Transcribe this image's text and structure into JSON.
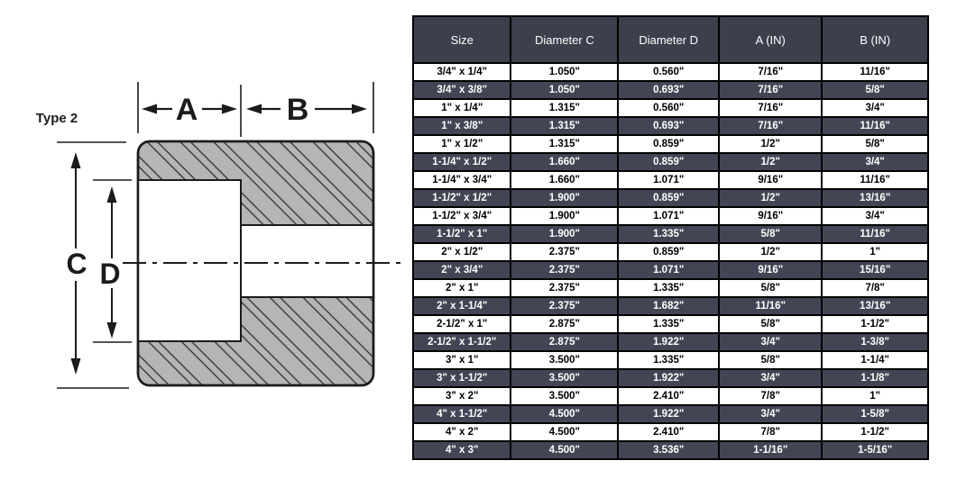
{
  "diagram": {
    "type_label": "Type 2",
    "labels": {
      "a": "A",
      "b": "B",
      "c": "C",
      "d": "D"
    },
    "body_fill": "#b5b5b5",
    "hatch_line_color": "#2e2e2e",
    "line_color": "#1b1b1b"
  },
  "table": {
    "header_bg": "#3c404d",
    "row_alt_bg": "#424654",
    "columns": [
      "Size",
      "Diameter C",
      "Diameter D",
      "A (IN)",
      "B (IN)"
    ],
    "rows": [
      [
        "3/4\" x 1/4\"",
        "1.050\"",
        "0.560\"",
        "7/16\"",
        "11/16\""
      ],
      [
        "3/4\" x 3/8\"",
        "1.050\"",
        "0.693\"",
        "7/16\"",
        "5/8\""
      ],
      [
        "1\" x 1/4\"",
        "1.315\"",
        "0.560\"",
        "7/16\"",
        "3/4\""
      ],
      [
        "1\" x 3/8\"",
        "1.315\"",
        "0.693\"",
        "7/16\"",
        "11/16\""
      ],
      [
        "1\" x 1/2\"",
        "1.315\"",
        "0.859\"",
        "1/2\"",
        "5/8\""
      ],
      [
        "1-1/4\" x 1/2\"",
        "1.660\"",
        "0.859\"",
        "1/2\"",
        "3/4\""
      ],
      [
        "1-1/4\" x 3/4\"",
        "1.660\"",
        "1.071\"",
        "9/16\"",
        "11/16\""
      ],
      [
        "1-1/2\" x 1/2\"",
        "1.900\"",
        "0.859\"",
        "1/2\"",
        "13/16\""
      ],
      [
        "1-1/2\" x 3/4\"",
        "1.900\"",
        "1.071\"",
        "9/16\"",
        "3/4\""
      ],
      [
        "1-1/2\" x 1\"",
        "1.900\"",
        "1.335\"",
        "5/8\"",
        "11/16\""
      ],
      [
        "2\" x 1/2\"",
        "2.375\"",
        "0.859\"",
        "1/2\"",
        "1\""
      ],
      [
        "2\" x 3/4\"",
        "2.375\"",
        "1.071\"",
        "9/16\"",
        "15/16\""
      ],
      [
        "2\" x 1\"",
        "2.375\"",
        "1.335\"",
        "5/8\"",
        "7/8\""
      ],
      [
        "2\" x 1-1/4\"",
        "2.375\"",
        "1.682\"",
        "11/16\"",
        "13/16\""
      ],
      [
        "2-1/2\" x 1\"",
        "2.875\"",
        "1.335\"",
        "5/8\"",
        "1-1/2\""
      ],
      [
        "2-1/2\" x 1-1/2\"",
        "2.875\"",
        "1.922\"",
        "3/4\"",
        "1-3/8\""
      ],
      [
        "3\" x 1\"",
        "3.500\"",
        "1.335\"",
        "5/8\"",
        "1-1/4\""
      ],
      [
        "3\" x 1-1/2\"",
        "3.500\"",
        "1.922\"",
        "3/4\"",
        "1-1/8\""
      ],
      [
        "3\" x 2\"",
        "3.500\"",
        "2.410\"",
        "7/8\"",
        "1\""
      ],
      [
        "4\" x 1-1/2\"",
        "4.500\"",
        "1.922\"",
        "3/4\"",
        "1-5/8\""
      ],
      [
        "4\" x 2\"",
        "4.500\"",
        "2.410\"",
        "7/8\"",
        "1-1/2\""
      ],
      [
        "4\" x 3\"",
        "4.500\"",
        "3.536\"",
        "1-1/16\"",
        "1-5/16\""
      ]
    ]
  }
}
